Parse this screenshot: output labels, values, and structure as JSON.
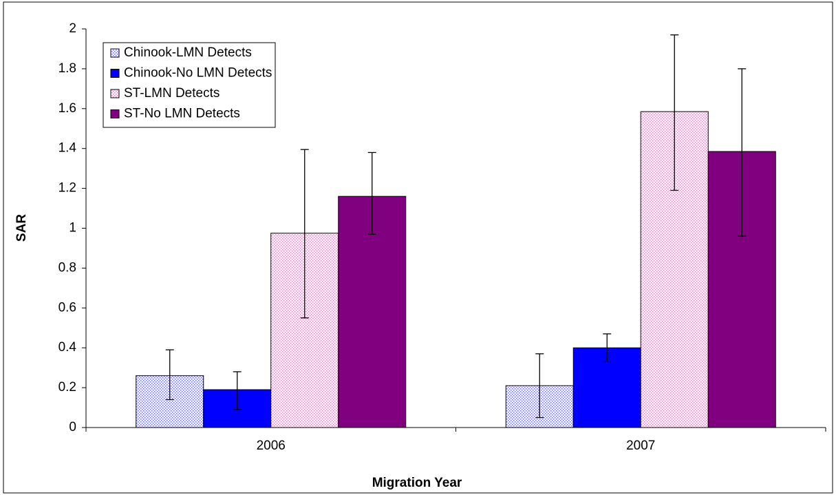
{
  "chart_data": {
    "type": "bar",
    "x_label": "Migration Year",
    "y_label": "SAR",
    "categories": [
      "2006",
      "2007"
    ],
    "series": [
      {
        "name": "Chinook-LMN Detects",
        "color": "#6666ff",
        "pattern": "dots",
        "values": [
          0.26,
          0.21
        ],
        "error_low": [
          0.14,
          0.05
        ],
        "error_high": [
          0.39,
          0.37
        ]
      },
      {
        "name": "Chinook-No LMN Detects",
        "color": "#0000ff",
        "pattern": "solid",
        "values": [
          0.19,
          0.4
        ],
        "error_low": [
          0.09,
          0.33
        ],
        "error_high": [
          0.28,
          0.47
        ]
      },
      {
        "name": "ST-LMN Detects",
        "color": "#e080c0",
        "pattern": "dots",
        "values": [
          0.975,
          1.585
        ],
        "error_low": [
          0.55,
          1.19
        ],
        "error_high": [
          1.395,
          1.97
        ]
      },
      {
        "name": "ST-No LMN Detects",
        "color": "#800080",
        "pattern": "solid",
        "values": [
          1.16,
          1.385
        ],
        "error_low": [
          0.97,
          0.96
        ],
        "error_high": [
          1.38,
          1.8
        ]
      }
    ],
    "ylim": [
      0,
      2
    ],
    "yticks": [
      0,
      0.2,
      0.4,
      0.6,
      0.8,
      1,
      1.2,
      1.4,
      1.6,
      1.8,
      2
    ],
    "grid": false,
    "legend": "top-left"
  }
}
